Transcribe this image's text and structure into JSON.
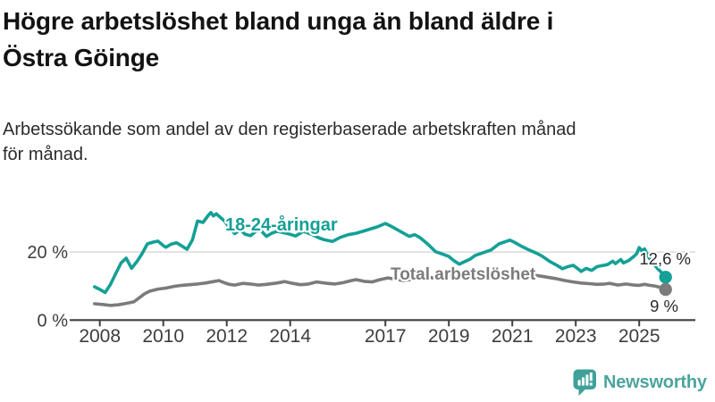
{
  "header": {
    "title_lines": [
      "Högre arbetslöshet bland unga än bland äldre i",
      "Östra Göinge"
    ],
    "subtitle_lines": [
      "Arbetssökande som andel av den registerbaserade arbetskraften månad",
      "för månad."
    ]
  },
  "footer": {
    "brand": "Newsworthy",
    "logo_icon": "speech-bubble-bar-chart-exclamation",
    "logo_color": "#3fa19a",
    "wordmark_color": "#4ba49e"
  },
  "chart_data": {
    "type": "line",
    "title": "Högre arbetslöshet bland unga än bland äldre i Östra Göinge",
    "subtitle": "Arbetssökande som andel av den registerbaserade arbetskraften månad för månad.",
    "unit": "%",
    "grid": "horizontal",
    "legend_position": "inline-labels",
    "x_range": [
      2007.75,
      2026.3
    ],
    "y_range": [
      0,
      33
    ],
    "x_ticks": [
      2008,
      2010,
      2012,
      2014,
      2017,
      2019,
      2021,
      2023,
      2025
    ],
    "y_ticks": [
      {
        "value": 0,
        "label": "0 %"
      },
      {
        "value": 20,
        "label": "20 %"
      }
    ],
    "axis_color": "#3f3f3f",
    "gridline_color": "#d9d9d9",
    "series": [
      {
        "name": "18-24-åringar",
        "color": "#14a096",
        "end_value": 12.6,
        "end_label": "12,6 %",
        "points": [
          [
            2007.83,
            9.8
          ],
          [
            2008,
            9
          ],
          [
            2008.17,
            8.1
          ],
          [
            2008.33,
            10.4
          ],
          [
            2008.5,
            13.6
          ],
          [
            2008.67,
            16.8
          ],
          [
            2008.83,
            18.2
          ],
          [
            2009,
            15.2
          ],
          [
            2009.17,
            17.2
          ],
          [
            2009.33,
            19.5
          ],
          [
            2009.5,
            22.4
          ],
          [
            2009.67,
            22.9
          ],
          [
            2009.83,
            23.2
          ],
          [
            2010,
            21.9
          ],
          [
            2010.08,
            21.4
          ],
          [
            2010.25,
            22.3
          ],
          [
            2010.42,
            22.7
          ],
          [
            2010.58,
            21.8
          ],
          [
            2010.75,
            20.8
          ],
          [
            2010.92,
            23.6
          ],
          [
            2011.08,
            29.1
          ],
          [
            2011.25,
            28.7
          ],
          [
            2011.42,
            30.8
          ],
          [
            2011.5,
            31.6
          ],
          [
            2011.58,
            30.6
          ],
          [
            2011.67,
            31.2
          ],
          [
            2011.83,
            29.9
          ],
          [
            2011.92,
            29.2
          ],
          [
            2012.08,
            27.2
          ],
          [
            2012.25,
            25.4
          ],
          [
            2012.42,
            26.6
          ],
          [
            2012.58,
            25.2
          ],
          [
            2012.75,
            24.8
          ],
          [
            2012.92,
            26.1
          ],
          [
            2013.08,
            26.3
          ],
          [
            2013.25,
            24.6
          ],
          [
            2013.42,
            25.5
          ],
          [
            2013.58,
            26.1
          ],
          [
            2013.83,
            25.6
          ],
          [
            2014,
            25.2
          ],
          [
            2014.17,
            24.7
          ],
          [
            2014.42,
            26.1
          ],
          [
            2014.67,
            25.2
          ],
          [
            2014.92,
            24.1
          ],
          [
            2015.08,
            23.6
          ],
          [
            2015.33,
            23.1
          ],
          [
            2015.58,
            24.3
          ],
          [
            2015.83,
            25.1
          ],
          [
            2016.08,
            25.5
          ],
          [
            2016.33,
            26.2
          ],
          [
            2016.5,
            26.7
          ],
          [
            2016.75,
            27.4
          ],
          [
            2017,
            28.4
          ],
          [
            2017.17,
            27.6
          ],
          [
            2017.33,
            26.8
          ],
          [
            2017.5,
            25.9
          ],
          [
            2017.75,
            24.6
          ],
          [
            2017.92,
            25.1
          ],
          [
            2018.08,
            24.3
          ],
          [
            2018.33,
            22.4
          ],
          [
            2018.58,
            20.1
          ],
          [
            2018.83,
            19.3
          ],
          [
            2019,
            18.7
          ],
          [
            2019.17,
            17.4
          ],
          [
            2019.33,
            16.4
          ],
          [
            2019.5,
            17.2
          ],
          [
            2019.67,
            17.9
          ],
          [
            2019.83,
            19
          ],
          [
            2020.08,
            19.8
          ],
          [
            2020.33,
            20.6
          ],
          [
            2020.58,
            22.4
          ],
          [
            2020.83,
            23.2
          ],
          [
            2020.92,
            23.5
          ],
          [
            2021.08,
            22.8
          ],
          [
            2021.33,
            21.5
          ],
          [
            2021.5,
            20.7
          ],
          [
            2021.75,
            19.7
          ],
          [
            2021.92,
            18.9
          ],
          [
            2022.17,
            17.3
          ],
          [
            2022.42,
            16
          ],
          [
            2022.58,
            15.1
          ],
          [
            2022.75,
            15.7
          ],
          [
            2022.92,
            16.1
          ],
          [
            2023.08,
            15
          ],
          [
            2023.17,
            14.3
          ],
          [
            2023.33,
            15.2
          ],
          [
            2023.5,
            14.6
          ],
          [
            2023.67,
            15.7
          ],
          [
            2023.83,
            16
          ],
          [
            2024,
            16.3
          ],
          [
            2024.17,
            17.3
          ],
          [
            2024.25,
            16.6
          ],
          [
            2024.42,
            17.8
          ],
          [
            2024.5,
            16.8
          ],
          [
            2024.67,
            17.5
          ],
          [
            2024.83,
            18.7
          ],
          [
            2024.92,
            19.5
          ],
          [
            2025,
            21.3
          ],
          [
            2025.08,
            20.4
          ],
          [
            2025.17,
            20.9
          ],
          [
            2025.25,
            19.4
          ],
          [
            2025.33,
            18
          ],
          [
            2025.42,
            17.4
          ],
          [
            2025.5,
            16
          ],
          [
            2025.58,
            15.1
          ],
          [
            2025.67,
            14.3
          ],
          [
            2025.83,
            12.6
          ]
        ]
      },
      {
        "name": "Total arbetslöshet",
        "color": "#7b7b7b",
        "end_value": 9,
        "end_label": "9 %",
        "points": [
          [
            2007.83,
            4.8
          ],
          [
            2008.08,
            4.6
          ],
          [
            2008.33,
            4.3
          ],
          [
            2008.58,
            4.5
          ],
          [
            2008.83,
            4.9
          ],
          [
            2009.08,
            5.4
          ],
          [
            2009.25,
            6.6
          ],
          [
            2009.42,
            7.8
          ],
          [
            2009.58,
            8.5
          ],
          [
            2009.83,
            9.1
          ],
          [
            2010.08,
            9.4
          ],
          [
            2010.33,
            9.9
          ],
          [
            2010.58,
            10.2
          ],
          [
            2010.83,
            10.4
          ],
          [
            2011.08,
            10.6
          ],
          [
            2011.33,
            10.9
          ],
          [
            2011.58,
            11.3
          ],
          [
            2011.75,
            11.6
          ],
          [
            2011.92,
            11
          ],
          [
            2012.08,
            10.5
          ],
          [
            2012.25,
            10.3
          ],
          [
            2012.5,
            10.8
          ],
          [
            2012.75,
            10.6
          ],
          [
            2013,
            10.3
          ],
          [
            2013.25,
            10.5
          ],
          [
            2013.58,
            10.9
          ],
          [
            2013.83,
            11.3
          ],
          [
            2014.08,
            10.8
          ],
          [
            2014.33,
            10.4
          ],
          [
            2014.58,
            10.6
          ],
          [
            2014.83,
            11.2
          ],
          [
            2015.17,
            10.8
          ],
          [
            2015.42,
            10.6
          ],
          [
            2015.67,
            11
          ],
          [
            2015.92,
            11.6
          ],
          [
            2016.08,
            11.9
          ],
          [
            2016.33,
            11.4
          ],
          [
            2016.58,
            11.2
          ],
          [
            2016.83,
            11.9
          ],
          [
            2017.08,
            12.4
          ],
          [
            2017.33,
            12
          ],
          [
            2017.58,
            11.6
          ],
          [
            2017.83,
            12
          ],
          [
            2018.08,
            12.4
          ],
          [
            2018.25,
            12.8
          ],
          [
            2018.5,
            12.4
          ],
          [
            2018.75,
            12.5
          ],
          [
            2019,
            12.9
          ],
          [
            2019.25,
            13.3
          ],
          [
            2019.5,
            12.9
          ],
          [
            2019.75,
            12.8
          ],
          [
            2020,
            13.1
          ],
          [
            2020.25,
            13.6
          ],
          [
            2020.5,
            14
          ],
          [
            2020.75,
            14.3
          ],
          [
            2020.92,
            14.5
          ],
          [
            2021.17,
            14
          ],
          [
            2021.42,
            13.6
          ],
          [
            2021.67,
            13.2
          ],
          [
            2021.92,
            12.9
          ],
          [
            2022.17,
            12.5
          ],
          [
            2022.42,
            12.1
          ],
          [
            2022.67,
            11.6
          ],
          [
            2022.92,
            11.2
          ],
          [
            2023.17,
            10.9
          ],
          [
            2023.42,
            10.7
          ],
          [
            2023.67,
            10.5
          ],
          [
            2023.92,
            10.6
          ],
          [
            2024.08,
            10.8
          ],
          [
            2024.33,
            10.3
          ],
          [
            2024.58,
            10.6
          ],
          [
            2024.83,
            10.3
          ],
          [
            2025,
            10.2
          ],
          [
            2025.17,
            10.5
          ],
          [
            2025.33,
            10.2
          ],
          [
            2025.5,
            10
          ],
          [
            2025.67,
            9.6
          ],
          [
            2025.83,
            9
          ]
        ]
      }
    ]
  }
}
